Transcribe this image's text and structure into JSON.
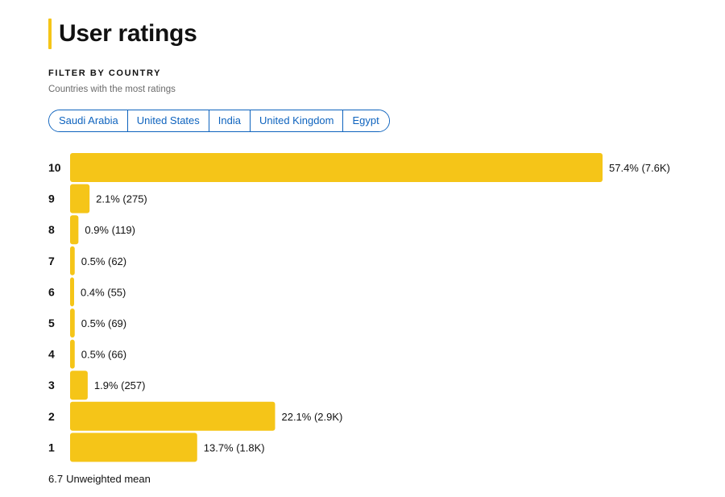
{
  "header": {
    "title": "User ratings"
  },
  "filter": {
    "heading": "FILTER BY COUNTRY",
    "subtitle": "Countries with the most ratings",
    "countries": [
      "Saudi Arabia",
      "United States",
      "India",
      "United Kingdom",
      "Egypt"
    ]
  },
  "colors": {
    "accent": "#f5c518",
    "link": "#0e63be",
    "text": "#111111",
    "muted": "#6b6b6b"
  },
  "chart_data": {
    "type": "bar",
    "orientation": "horizontal",
    "categories": [
      "10",
      "9",
      "8",
      "7",
      "6",
      "5",
      "4",
      "3",
      "2",
      "1"
    ],
    "values": [
      57.4,
      2.1,
      0.9,
      0.5,
      0.4,
      0.5,
      0.5,
      1.9,
      22.1,
      13.7
    ],
    "counts": [
      "7.6K",
      "275",
      "119",
      "62",
      "55",
      "69",
      "66",
      "257",
      "2.9K",
      "1.8K"
    ],
    "labels": [
      "57.4% (7.6K)",
      "2.1% (275)",
      "0.9% (119)",
      "0.5% (62)",
      "0.4% (55)",
      "0.5% (69)",
      "0.5% (66)",
      "1.9% (257)",
      "22.1% (2.9K)",
      "13.7% (1.8K)"
    ],
    "unit": "%",
    "grid": false,
    "legend": false
  },
  "summary": {
    "mean": "6.7",
    "mean_label": "Unweighted mean"
  }
}
